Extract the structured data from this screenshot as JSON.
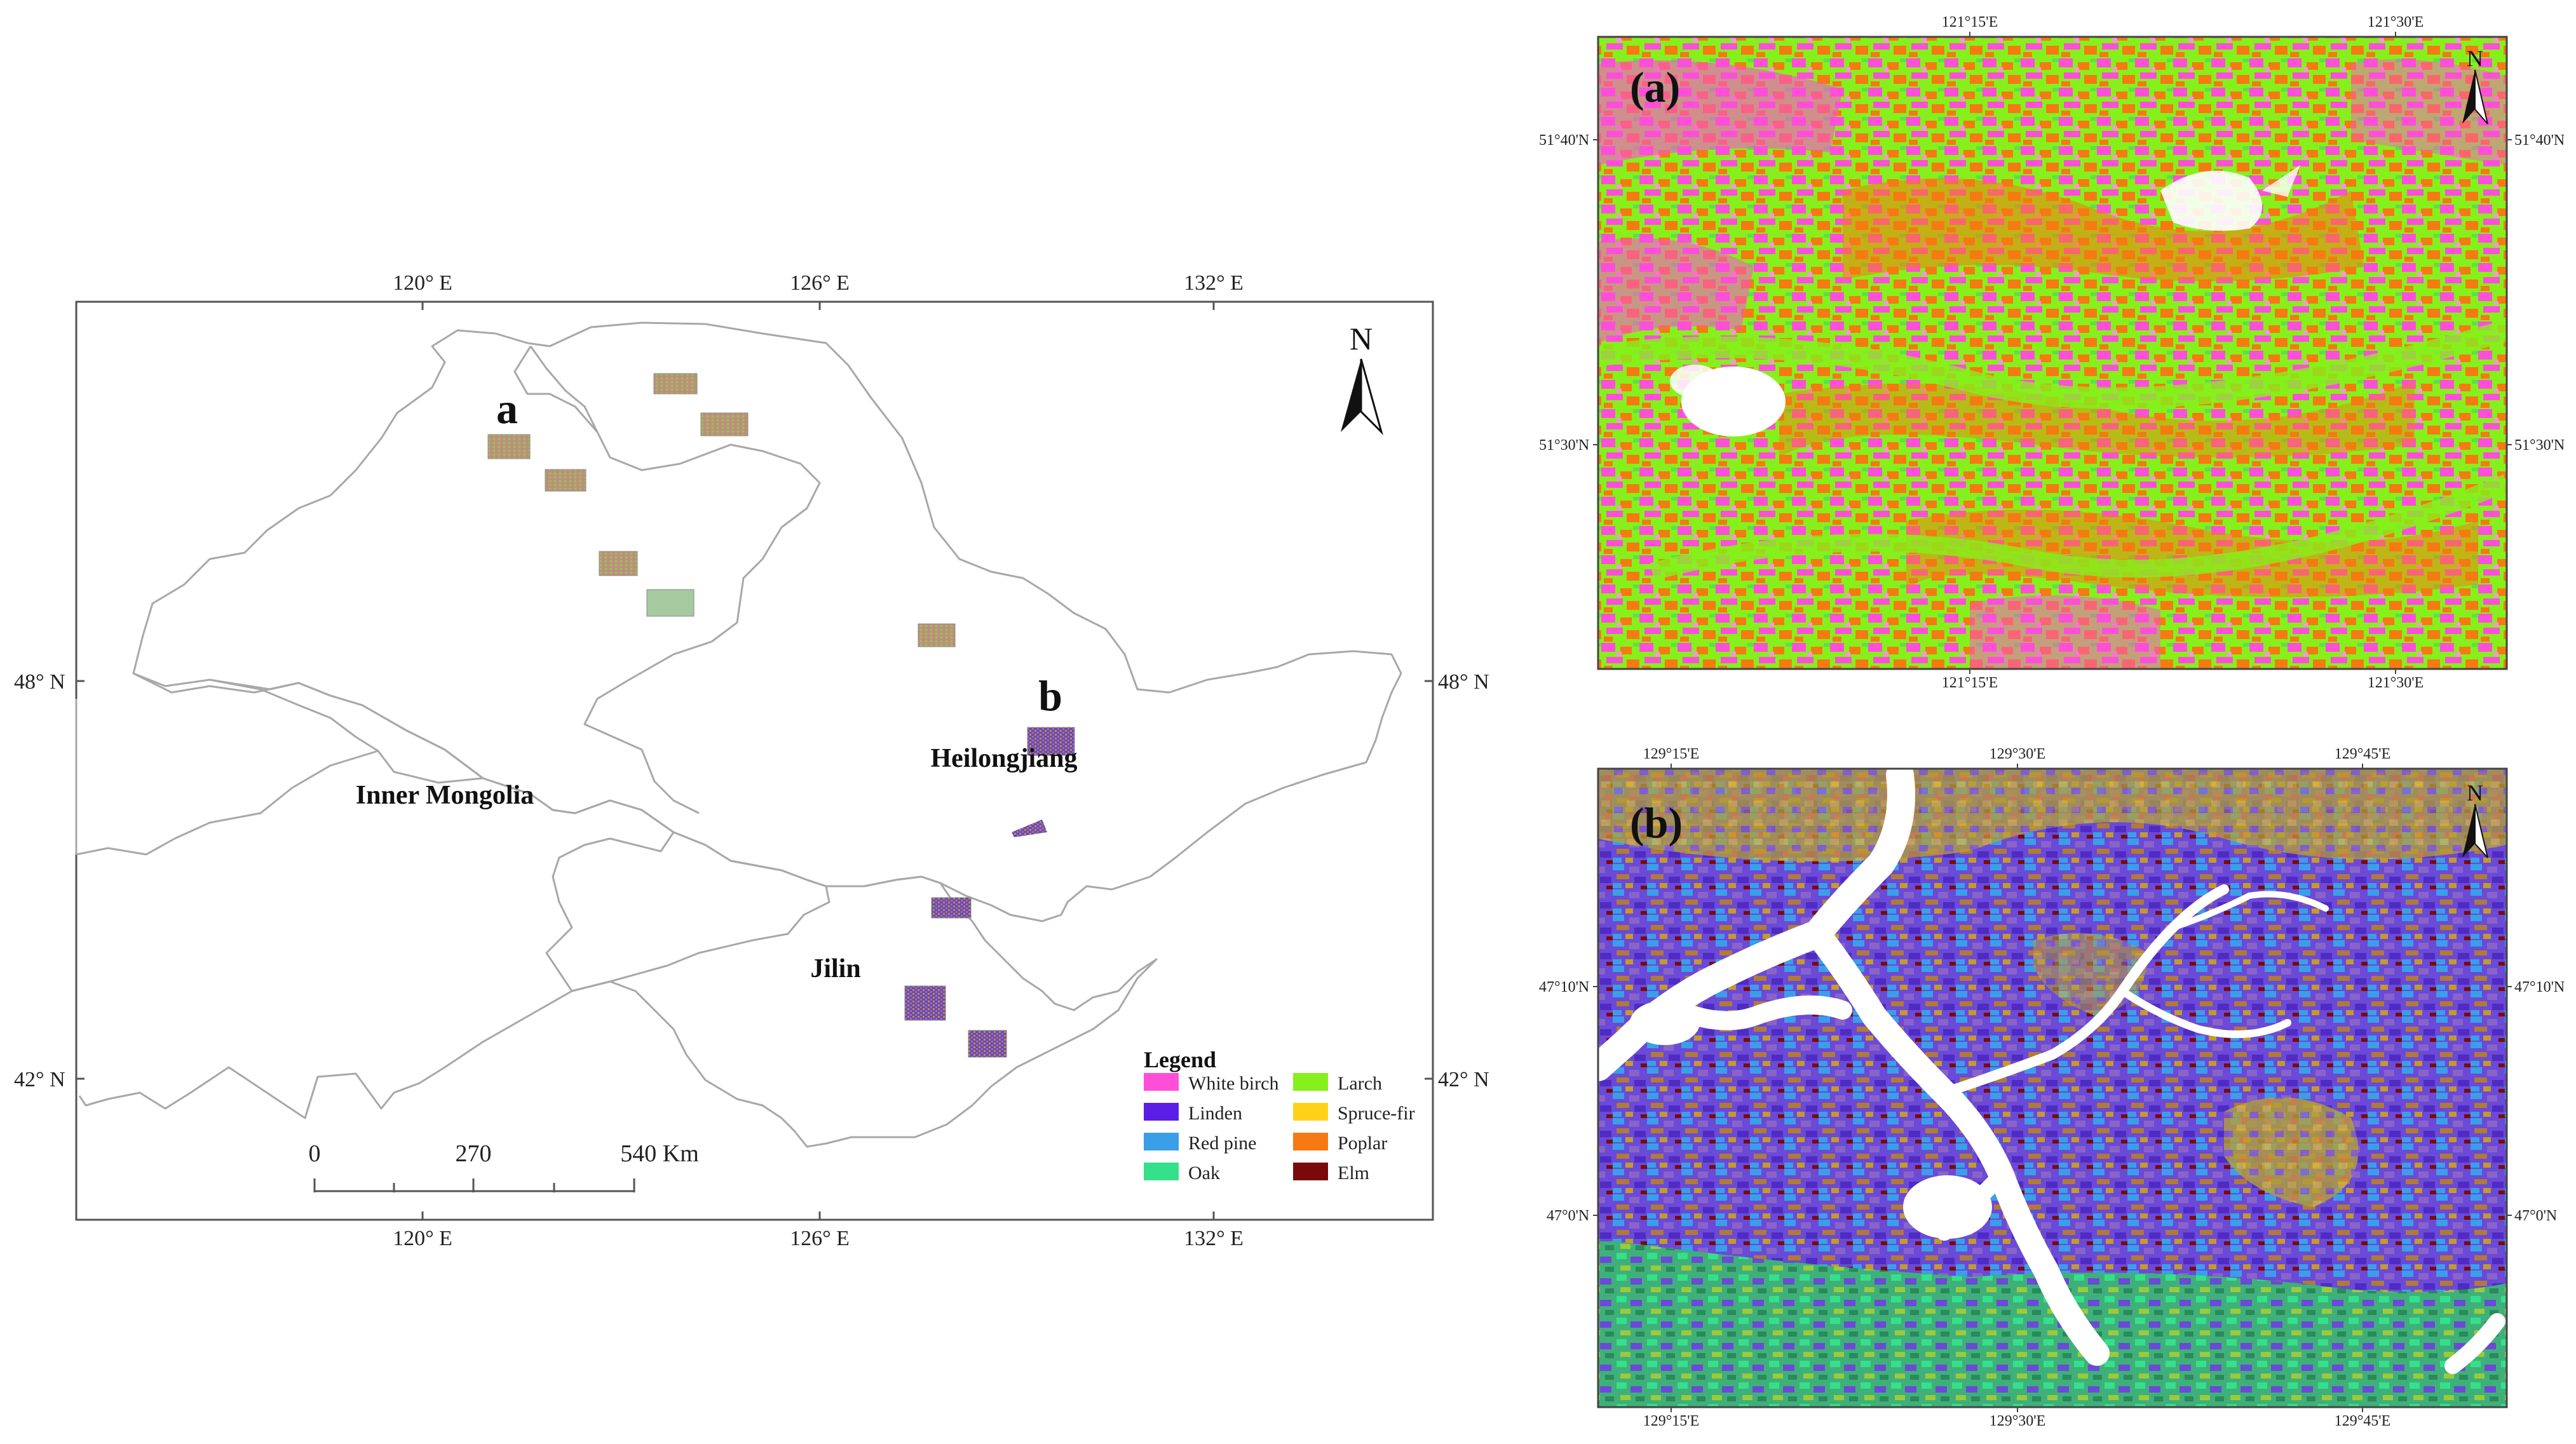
{
  "main_map": {
    "top_ticks": [
      "120° E",
      "126° E",
      "132° E"
    ],
    "bottom_ticks": [
      "120° E",
      "126° E",
      "132° E"
    ],
    "left_ticks": [
      "48° N",
      "42° N"
    ],
    "right_ticks": [
      "48° N",
      "42° N"
    ],
    "north_label": "N",
    "regions": [
      "Inner Mongolia",
      "Heilongjiang",
      "Jilin"
    ],
    "site_labels": {
      "a": "a",
      "b": "b"
    },
    "scale_bar": {
      "labels": [
        "0",
        "270",
        "540 Km"
      ]
    },
    "legend": {
      "title": "Legend",
      "items": [
        {
          "label": "White birch",
          "color": "#ff4fd8"
        },
        {
          "label": "Larch",
          "color": "#86f01c"
        },
        {
          "label": "Linden",
          "color": "#5b1ee6"
        },
        {
          "label": "Spruce-fir",
          "color": "#ffd21a"
        },
        {
          "label": "Red pine",
          "color": "#3a9fe8"
        },
        {
          "label": "Poplar",
          "color": "#f57a12"
        },
        {
          "label": "Oak",
          "color": "#35e08a"
        },
        {
          "label": "Elm",
          "color": "#7a0a0a"
        }
      ]
    }
  },
  "panel_a": {
    "label": "(a)",
    "north_label": "N",
    "top_ticks": [
      "121°15'E",
      "121°30'E"
    ],
    "bottom_ticks": [
      "121°15'E",
      "121°30'E"
    ],
    "left_ticks": [
      "51°40'N",
      "51°30'N"
    ],
    "right_ticks": [
      "51°40'N",
      "51°30'N"
    ]
  },
  "panel_b": {
    "label": "(b)",
    "north_label": "N",
    "top_ticks": [
      "129°15'E",
      "129°30'E",
      "129°45'E"
    ],
    "bottom_ticks": [
      "129°15'E",
      "129°30'E",
      "129°45'E"
    ],
    "left_ticks": [
      "47°10'N",
      "47°0'N"
    ],
    "right_ticks": [
      "47°10'N",
      "47°0'N"
    ]
  }
}
